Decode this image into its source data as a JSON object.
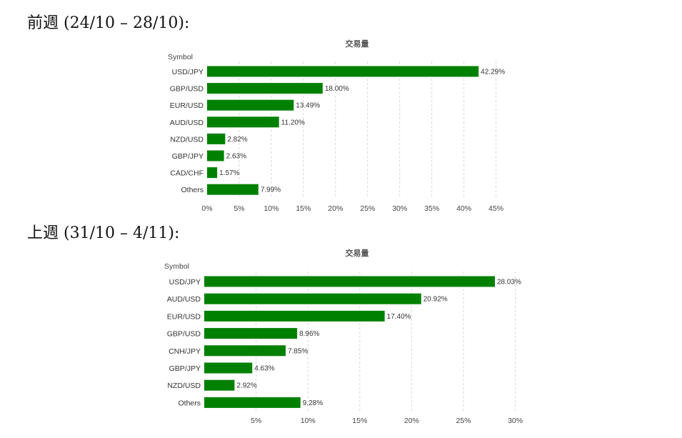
{
  "sections": [
    {
      "heading": "前週 (24/10 – 28/10):"
    },
    {
      "heading": "上週 (31/10 – 4/11):"
    }
  ],
  "chart_data": [
    {
      "type": "bar",
      "orientation": "horizontal",
      "title": "交易量",
      "ylabel": "Symbol",
      "categories": [
        "USD/JPY",
        "GBP/USD",
        "EUR/USD",
        "AUD/USD",
        "NZD/USD",
        "GBP/JPY",
        "CAD/CHF",
        "Others"
      ],
      "values": [
        42.29,
        18.0,
        13.49,
        11.2,
        2.82,
        2.63,
        1.57,
        7.99
      ],
      "value_labels": [
        "42.29%",
        "18.00%",
        "13.49%",
        "11.20%",
        "2.82%",
        "2.63%",
        "1.57%",
        "7.99%"
      ],
      "xticks": [
        0,
        5,
        10,
        15,
        20,
        25,
        30,
        35,
        40,
        45
      ],
      "xtick_labels": [
        "0%",
        "5%",
        "10%",
        "15%",
        "20%",
        "25%",
        "30%",
        "35%",
        "40%",
        "45%"
      ],
      "xlim": [
        0,
        45
      ],
      "bar_color": "#008000",
      "grid": "vertical dashed"
    },
    {
      "type": "bar",
      "orientation": "horizontal",
      "title": "交易量",
      "ylabel": "Symbol",
      "categories": [
        "USD/JPY",
        "AUD/USD",
        "EUR/USD",
        "GBP/USD",
        "CNH/JPY",
        "GBP/JPY",
        "NZD/USD",
        "Others"
      ],
      "values": [
        28.03,
        20.92,
        17.4,
        8.96,
        7.85,
        4.63,
        2.92,
        9.28
      ],
      "value_labels": [
        "28.03%",
        "20.92%",
        "17.40%",
        "8.96%",
        "7.85%",
        "4.63%",
        "2.92%",
        "9.28%"
      ],
      "xticks": [
        5,
        10,
        15,
        20,
        25,
        30
      ],
      "xtick_labels": [
        "5%",
        "10%",
        "15%",
        "20%",
        "25%",
        "30%"
      ],
      "xlim": [
        0,
        30
      ],
      "bar_color": "#008000",
      "grid": "vertical dashed"
    }
  ]
}
